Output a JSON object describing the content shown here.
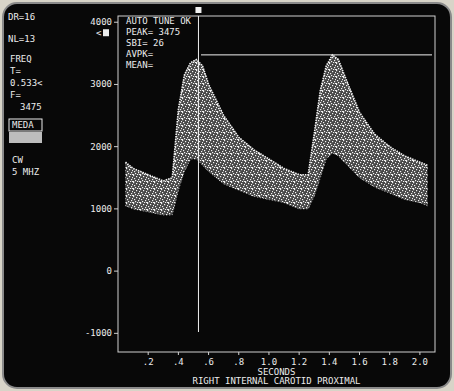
{
  "chart_data": {
    "type": "area",
    "title": "RIGHT INTERNAL CAROTID PROXIMAL",
    "x_label": "SECONDS",
    "x": [
      0.05,
      0.1,
      0.2,
      0.3,
      0.36,
      0.4,
      0.44,
      0.48,
      0.52,
      0.56,
      0.6,
      0.7,
      0.8,
      0.9,
      1.0,
      1.1,
      1.2,
      1.26,
      1.3,
      1.34,
      1.38,
      1.42,
      1.46,
      1.5,
      1.6,
      1.7,
      1.8,
      1.9,
      2.0,
      2.05
    ],
    "values": [
      1750,
      1650,
      1550,
      1450,
      1500,
      2600,
      3150,
      3350,
      3400,
      3300,
      3000,
      2500,
      2150,
      1950,
      1800,
      1650,
      1550,
      1550,
      2200,
      2900,
      3300,
      3475,
      3400,
      3150,
      2550,
      2200,
      2000,
      1850,
      1750,
      1700
    ],
    "low_values": [
      1050,
      1000,
      950,
      900,
      900,
      1300,
      1600,
      1800,
      1800,
      1700,
      1600,
      1400,
      1300,
      1200,
      1150,
      1100,
      1000,
      1000,
      1200,
      1500,
      1800,
      1900,
      1850,
      1750,
      1500,
      1350,
      1250,
      1150,
      1100,
      1050
    ],
    "xlim": [
      0,
      2.1
    ],
    "xticks": [
      {
        "value": 0.2,
        "label": ".2"
      },
      {
        "value": 0.4,
        "label": ".4"
      },
      {
        "value": 0.6,
        "label": ".6"
      },
      {
        "value": 0.8,
        "label": ".8"
      },
      {
        "value": 1,
        "label": "1.0"
      },
      1.2,
      1.4,
      1.6,
      1.8,
      {
        "value": 2,
        "label": "2.0"
      }
    ],
    "ylim": [
      -1300,
      4100
    ],
    "yticks": [
      -1000,
      0,
      1000,
      2000,
      3000,
      4000
    ],
    "color": "#f2f2f2",
    "grid": false,
    "cursor_x": 0.533,
    "peak_line": {
      "y": 3475,
      "from_x": 0.55
    },
    "annotations": [
      "AUTO TUNE OK",
      "PEAK= 3475",
      "SBI= 26",
      "AVPK=",
      "MEAN="
    ],
    "panel": [
      "DR=16",
      "NL=13",
      "FREQ",
      "T=",
      "0.533<",
      "F=",
      "3475",
      "MEDA",
      "CW",
      "5 MHZ"
    ],
    "axis_marker": "<"
  }
}
